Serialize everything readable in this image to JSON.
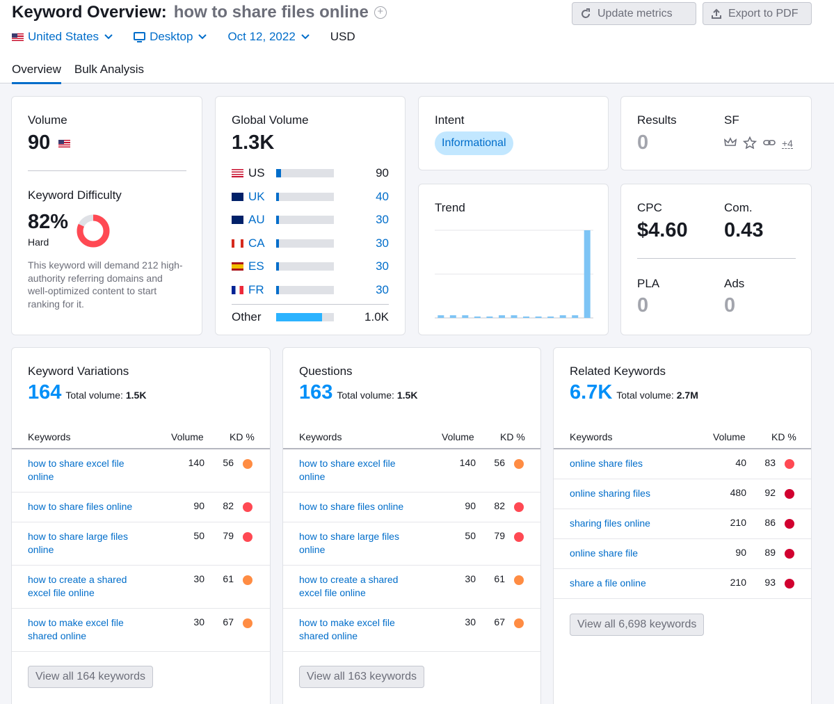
{
  "header": {
    "title": "Keyword Overview:",
    "keyword": "how to share files online",
    "update_label": "Update metrics",
    "export_label": "Export to PDF"
  },
  "filters": {
    "country": "United States",
    "device": "Desktop",
    "date": "Oct 12, 2022",
    "currency": "USD"
  },
  "tabs": [
    {
      "label": "Overview",
      "active": true
    },
    {
      "label": "Bulk Analysis",
      "active": false
    }
  ],
  "volume": {
    "label": "Volume",
    "value": "90"
  },
  "kd": {
    "label": "Keyword Difficulty",
    "value": "82%",
    "level": "Hard",
    "percent": 82,
    "description": "This keyword will demand 212 high-authority referring domains and well-optimized content to start ranking for it."
  },
  "global_volume": {
    "label": "Global Volume",
    "value": "1.3K",
    "rows": [
      {
        "code": "US",
        "value": "90",
        "share": 0.08
      },
      {
        "code": "UK",
        "value": "40",
        "share": 0.04
      },
      {
        "code": "AU",
        "value": "30",
        "share": 0.03
      },
      {
        "code": "CA",
        "value": "30",
        "share": 0.03
      },
      {
        "code": "ES",
        "value": "30",
        "share": 0.03
      },
      {
        "code": "FR",
        "value": "30",
        "share": 0.03
      }
    ],
    "other": {
      "code": "Other",
      "value": "1.0K",
      "share": 0.8
    }
  },
  "intent": {
    "label": "Intent",
    "value": "Informational"
  },
  "results": {
    "label": "Results",
    "value": "0",
    "sf_label": "SF",
    "sf_more": "+4",
    "sf_icons": [
      "crown-icon",
      "star-icon",
      "link-icon"
    ]
  },
  "trend": {
    "label": "Trend",
    "values": [
      0.03,
      0.03,
      0.03,
      0.01,
      0.01,
      0.03,
      0.03,
      0.01,
      0.01,
      0.01,
      0.03,
      0.03,
      1.0
    ]
  },
  "cpc": {
    "label": "CPC",
    "value": "$4.60",
    "com_label": "Com.",
    "com_value": "0.43",
    "pla_label": "PLA",
    "pla_value": "0",
    "ads_label": "Ads",
    "ads_value": "0"
  },
  "table_headers": {
    "keywords": "Keywords",
    "volume": "Volume",
    "kd": "KD %"
  },
  "variations": {
    "title": "Keyword Variations",
    "count": "164",
    "total_label": "Total volume:",
    "total_value": "1.5K",
    "rows": [
      {
        "keyword": "how to share excel file online",
        "volume": "140",
        "kd": "56",
        "color": "#ff8c43"
      },
      {
        "keyword": "how to share files online",
        "volume": "90",
        "kd": "82",
        "color": "#ff4953"
      },
      {
        "keyword": "how to share large files online",
        "volume": "50",
        "kd": "79",
        "color": "#ff4953"
      },
      {
        "keyword": "how to create a shared excel file online",
        "volume": "30",
        "kd": "61",
        "color": "#ff8c43"
      },
      {
        "keyword": "how to make excel file shared online",
        "volume": "30",
        "kd": "67",
        "color": "#ff8c43"
      }
    ],
    "view_all": "View all 164 keywords"
  },
  "questions": {
    "title": "Questions",
    "count": "163",
    "total_label": "Total volume:",
    "total_value": "1.5K",
    "rows": [
      {
        "keyword": "how to share excel file online",
        "volume": "140",
        "kd": "56",
        "color": "#ff8c43"
      },
      {
        "keyword": "how to share files online",
        "volume": "90",
        "kd": "82",
        "color": "#ff4953"
      },
      {
        "keyword": "how to share large files online",
        "volume": "50",
        "kd": "79",
        "color": "#ff4953"
      },
      {
        "keyword": "how to create a shared excel file online",
        "volume": "30",
        "kd": "61",
        "color": "#ff8c43"
      },
      {
        "keyword": "how to make excel file shared online",
        "volume": "30",
        "kd": "67",
        "color": "#ff8c43"
      }
    ],
    "view_all": "View all 163 keywords"
  },
  "related": {
    "title": "Related Keywords",
    "count": "6.7K",
    "total_label": "Total volume:",
    "total_value": "2.7M",
    "rows": [
      {
        "keyword": "online share files",
        "volume": "40",
        "kd": "83",
        "color": "#ff4953"
      },
      {
        "keyword": "online sharing files",
        "volume": "480",
        "kd": "92",
        "color": "#d1002f"
      },
      {
        "keyword": "sharing files online",
        "volume": "210",
        "kd": "86",
        "color": "#d1002f"
      },
      {
        "keyword": "online share file",
        "volume": "90",
        "kd": "89",
        "color": "#d1002f"
      },
      {
        "keyword": "share a file online",
        "volume": "210",
        "kd": "93",
        "color": "#d1002f"
      }
    ],
    "view_all": "View all 6,698 keywords"
  }
}
